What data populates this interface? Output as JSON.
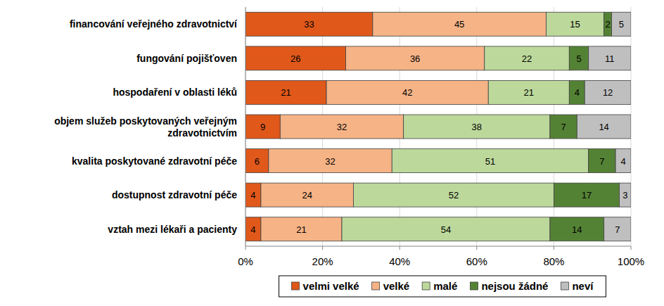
{
  "chart_data": {
    "type": "bar",
    "orientation": "horizontal",
    "stacked": true,
    "data_labels": true,
    "grid": true,
    "legend": "bottom",
    "categories": [
      "financování veřejného zdravotnictví",
      "fungování pojišťoven",
      "hospodaření v oblasti léků",
      "objem služeb poskytovaných veřejným zdravotnictvím",
      "kvalita poskytované zdravotní péče",
      "dostupnost zdravotní péče",
      "vztah mezi lékaři a pacienty"
    ],
    "series": [
      {
        "name": "velmi velké",
        "color": "#e0581a",
        "values": [
          33,
          26,
          21,
          9,
          6,
          4,
          4
        ]
      },
      {
        "name": "velké",
        "color": "#f5b386",
        "values": [
          45,
          36,
          42,
          32,
          32,
          24,
          21
        ]
      },
      {
        "name": "malé",
        "color": "#bcd89b",
        "values": [
          15,
          22,
          21,
          38,
          51,
          52,
          54
        ]
      },
      {
        "name": "nejsou žádné",
        "color": "#548235",
        "values": [
          2,
          5,
          4,
          7,
          7,
          17,
          14
        ]
      },
      {
        "name": "neví",
        "color": "#bfbfbf",
        "values": [
          5,
          11,
          12,
          14,
          4,
          3,
          7
        ]
      }
    ],
    "xlim": [
      0,
      100
    ],
    "xticks": [
      {
        "value": 0,
        "label": "0%"
      },
      {
        "value": 20,
        "label": "20%"
      },
      {
        "value": 40,
        "label": "40%"
      },
      {
        "value": 60,
        "label": "60%"
      },
      {
        "value": 80,
        "label": "80%"
      },
      {
        "value": 100,
        "label": "100%"
      }
    ]
  }
}
